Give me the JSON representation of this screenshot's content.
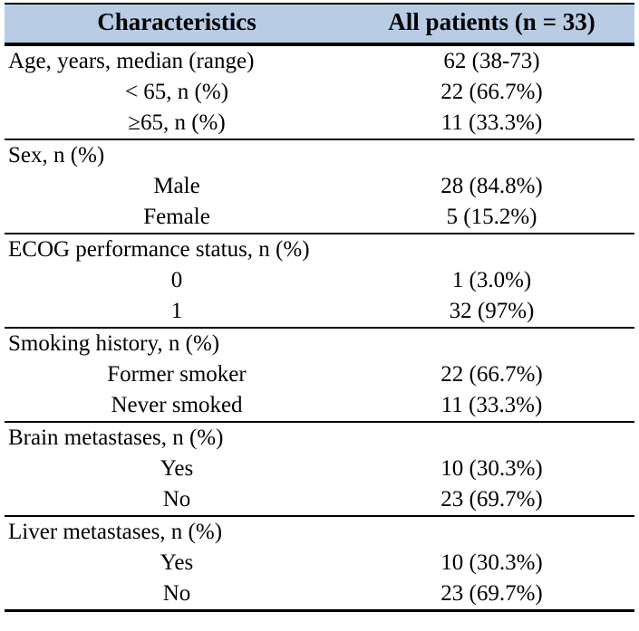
{
  "table": {
    "title_semantic": "Patient characteristics table",
    "header_bg_color": "#b8cce4",
    "border_color": "#000000",
    "columns": [
      "Characteristics",
      "All patients (n = 33)"
    ],
    "sections": [
      {
        "rows": [
          {
            "label": "Age, years, median (range)",
            "value": "62 (38-73)"
          },
          {
            "label": "< 65, n (%)",
            "value": "22 (66.7%)"
          },
          {
            "label": "≥65, n (%)",
            "value": "11 (33.3%)"
          }
        ]
      },
      {
        "rows": [
          {
            "label": "Sex, n (%)",
            "value": ""
          },
          {
            "label": "Male",
            "value": "28 (84.8%)"
          },
          {
            "label": "Female",
            "value": "5 (15.2%)"
          }
        ]
      },
      {
        "rows": [
          {
            "label": "ECOG performance status, n (%)",
            "value": ""
          },
          {
            "label": "0",
            "value": "1 (3.0%)"
          },
          {
            "label": "1",
            "value": "32 (97%)"
          }
        ]
      },
      {
        "rows": [
          {
            "label": "Smoking history, n (%)",
            "value": ""
          },
          {
            "label": "Former smoker",
            "value": "22 (66.7%)"
          },
          {
            "label": "Never smoked",
            "value": "11 (33.3%)"
          }
        ]
      },
      {
        "rows": [
          {
            "label": "Brain metastases, n (%)",
            "value": ""
          },
          {
            "label": "Yes",
            "value": "10 (30.3%)"
          },
          {
            "label": "No",
            "value": "23 (69.7%)"
          }
        ]
      },
      {
        "rows": [
          {
            "label": "Liver metastases, n (%)",
            "value": ""
          },
          {
            "label": "Yes",
            "value": "10 (30.3%)"
          },
          {
            "label": "No",
            "value": "23 (69.7%)"
          }
        ]
      }
    ]
  }
}
